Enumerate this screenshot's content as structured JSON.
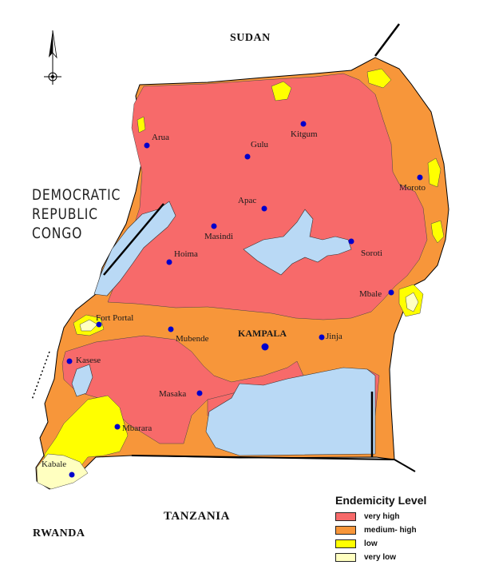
{
  "countries": {
    "north": "SUDAN",
    "south": "TANZANIA",
    "southwest": "RWANDA",
    "west_lines": [
      "DEMOCRATIC",
      "REPUBLIC",
      "CONGO"
    ]
  },
  "capital": {
    "name": "KAMPALA"
  },
  "towns": {
    "arua": "Arua",
    "gulu": "Gulu",
    "kitgum": "Kitgum",
    "moroto": "Moroto",
    "apac": "Apac",
    "masindi": "Masindi",
    "hoima": "Hoima",
    "soroti": "Soroti",
    "mbale": "Mbale",
    "fort_portal": "Fort Portal",
    "mubende": "Mubende",
    "jinja": "Jinja",
    "kasese": "Kasese",
    "masaka": "Masaka",
    "mbarara": "Mbarara",
    "kabale": "Kabale"
  },
  "legend": {
    "title": "Endemicity Level",
    "items": [
      {
        "label": "very high",
        "color": "#f76a6a"
      },
      {
        "label": "medium- high",
        "color": "#f7963a"
      },
      {
        "label": "low",
        "color": "#ffff00"
      },
      {
        "label": "very low",
        "color": "#ffffc0"
      }
    ]
  },
  "colors": {
    "very_high": "#f76a6a",
    "medium_high": "#f7963a",
    "low": "#ffff00",
    "very_low": "#ffffc0",
    "water": "#b9d9f5",
    "town_marker": "#0000cc",
    "border": "#000000"
  },
  "icons": {
    "north_arrow": "north-arrow-icon"
  }
}
